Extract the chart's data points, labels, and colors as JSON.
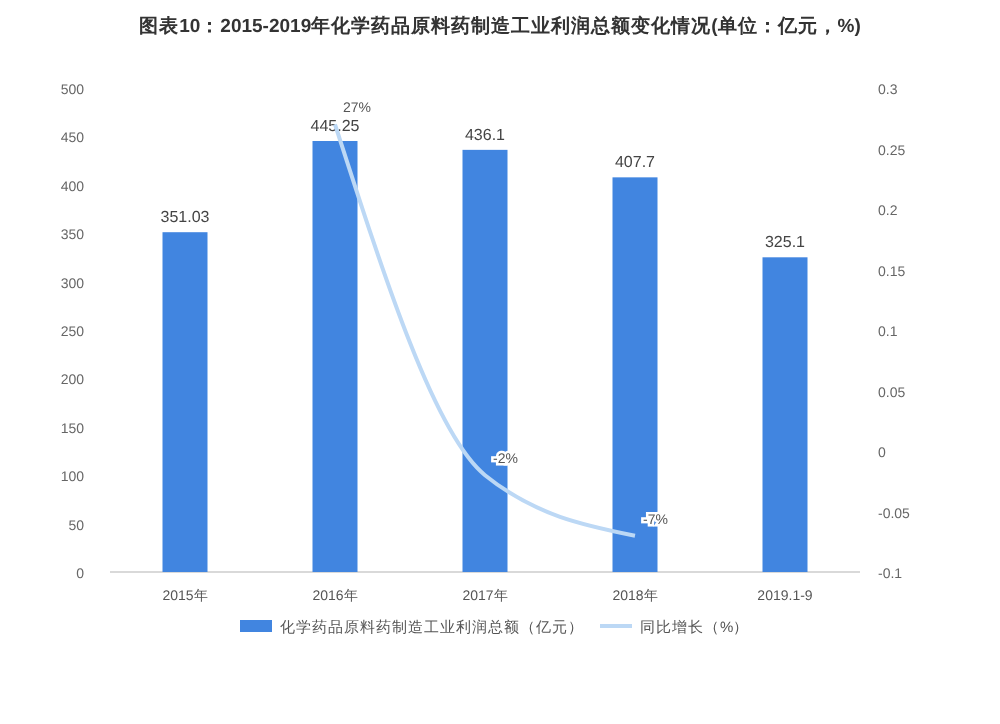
{
  "chart_data": {
    "type": "bar",
    "title": "图表10：2015-2019年化学药品原料药制造工业利润总额变化情况(单位：亿元，%)",
    "categories": [
      "2015年",
      "2016年",
      "2017年",
      "2018年",
      "2019.1-9"
    ],
    "series": [
      {
        "name": "化学药品原料药制造工业利润总额（亿元）",
        "color": "#4185e0",
        "values": [
          351.03,
          445.25,
          436.1,
          407.7,
          325.1
        ],
        "value_labels": [
          "351.03",
          "445.25",
          "436.1",
          "407.7",
          "325.1"
        ]
      },
      {
        "name": "同比增长（%）",
        "type": "line",
        "axis": "y2",
        "color": "#bcd8f5",
        "values": [
          null,
          0.27,
          -0.02,
          -0.07,
          null
        ],
        "value_labels": [
          null,
          "27%",
          "-2%",
          "-7%",
          null
        ]
      }
    ],
    "ylim": [
      0,
      500
    ],
    "yticks": [
      0,
      50,
      100,
      150,
      200,
      250,
      300,
      350,
      400,
      450,
      500
    ],
    "y2lim": [
      -0.1,
      0.3
    ],
    "y2ticks": [
      -0.1,
      -0.05,
      0,
      0.05,
      0.1,
      0.15,
      0.2,
      0.25,
      0.3
    ],
    "legend": "bottom",
    "marker": "none"
  }
}
